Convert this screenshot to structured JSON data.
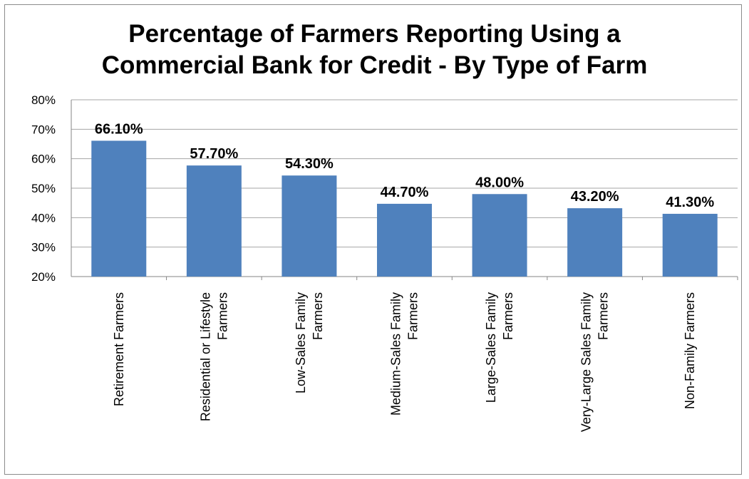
{
  "chart_data": {
    "type": "bar",
    "title_lines": [
      "Percentage of Farmers Reporting Using a",
      "Commercial Bank for Credit - By Type of Farm"
    ],
    "categories": [
      [
        "Retirement Farmers"
      ],
      [
        "Residential or Lifestyle",
        "Farmers"
      ],
      [
        "Low-Sales Family",
        "Farmers"
      ],
      [
        "Medium-Sales Family",
        "Farmers"
      ],
      [
        "Large-Sales Family",
        "Farmers"
      ],
      [
        "Very-Large Sales Family",
        "Farmers"
      ],
      [
        "Non-Family Farmers"
      ]
    ],
    "values": [
      66.1,
      57.7,
      54.3,
      44.7,
      48.0,
      43.2,
      41.3
    ],
    "data_labels": [
      "66.10%",
      "57.70%",
      "54.30%",
      "44.70%",
      "48.00%",
      "43.20%",
      "41.30%"
    ],
    "ylim": [
      20,
      80
    ],
    "yticks": [
      "20%",
      "30%",
      "40%",
      "50%",
      "60%",
      "70%",
      "80%"
    ],
    "grid": true,
    "bar_color": "#4f81bd",
    "grid_color": "#a6a6a6"
  }
}
